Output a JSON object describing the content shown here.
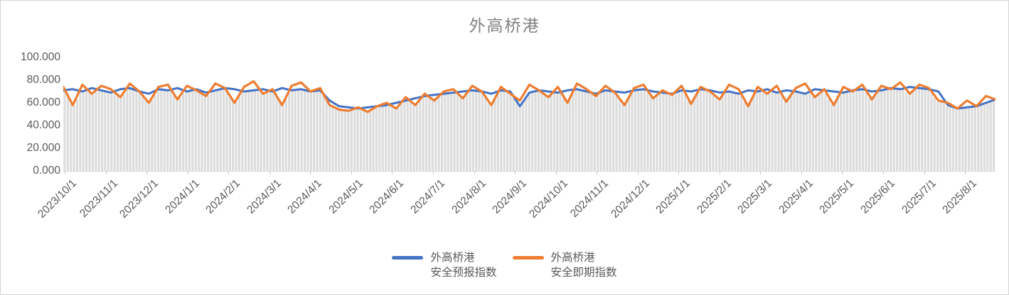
{
  "title": "外高桥港",
  "colors": {
    "forecast_line": "#4472C4",
    "spot_line": "#ED7D31",
    "background_bars": "#dcdcdc",
    "axis_text": "#595959",
    "title_text": "#808080",
    "axis_line": "#d9d9d9"
  },
  "legend": {
    "items": [
      {
        "line1": "外高桥港",
        "line2": "安全预报指数",
        "color": "#4472C4"
      },
      {
        "line1": "外高桥港",
        "line2": "安全即期指数",
        "color": "#ED7D31"
      }
    ]
  },
  "chart_data": {
    "type": "line",
    "title": "外高桥港",
    "xlabel": "",
    "ylabel": "",
    "ylim": [
      0,
      100
    ],
    "grid": false,
    "legend_position": "bottom-center",
    "x_start": "2023/10/1",
    "x_interval_days": 7,
    "x_tick_labels": [
      "2023/10/1",
      "2023/11/1",
      "2023/12/1",
      "2024/1/1",
      "2024/2/1",
      "2024/3/1",
      "2024/4/1",
      "2024/5/1",
      "2024/6/1",
      "2024/7/1",
      "2024/8/1",
      "2024/9/1",
      "2024/10/1",
      "2024/11/1",
      "2024/12/1",
      "2025/1/1",
      "2025/2/1",
      "2025/3/1",
      "2025/4/1",
      "2025/5/1",
      "2025/6/1",
      "2025/7/1",
      "2025/8/1"
    ],
    "y_tick_labels": [
      "0.000",
      "20.000",
      "40.000",
      "60.000",
      "80.000",
      "100.000"
    ],
    "y_tick_values": [
      0,
      20,
      40,
      60,
      80,
      100
    ],
    "series": [
      {
        "name": "外高桥港安全预报指数",
        "color": "#4472C4",
        "values": [
          71,
          72,
          70,
          73,
          71,
          69,
          72,
          73,
          70,
          68,
          72,
          71,
          73,
          70,
          72,
          69,
          71,
          73,
          72,
          70,
          71,
          72,
          70,
          73,
          71,
          72,
          70,
          71,
          62,
          57,
          56,
          55,
          56,
          57,
          58,
          60,
          62,
          64,
          66,
          67,
          68,
          69,
          70,
          71,
          70,
          68,
          71,
          70,
          57,
          69,
          71,
          70,
          69,
          71,
          72,
          70,
          68,
          71,
          70,
          69,
          71,
          72,
          70,
          69,
          68,
          71,
          70,
          72,
          71,
          69,
          70,
          68,
          71,
          70,
          72,
          69,
          71,
          70,
          68,
          72,
          71,
          70,
          69,
          71,
          72,
          70,
          71,
          73,
          72,
          74,
          73,
          72,
          70,
          58,
          55,
          56,
          57,
          60,
          63
        ]
      },
      {
        "name": "外高桥港安全即期指数",
        "color": "#ED7D31",
        "values": [
          74,
          58,
          76,
          68,
          75,
          72,
          65,
          77,
          70,
          60,
          74,
          76,
          63,
          75,
          71,
          66,
          77,
          73,
          60,
          74,
          79,
          68,
          72,
          58,
          75,
          78,
          70,
          73,
          58,
          54,
          53,
          56,
          52,
          57,
          60,
          55,
          65,
          58,
          68,
          62,
          70,
          72,
          64,
          75,
          70,
          58,
          74,
          68,
          62,
          76,
          71,
          65,
          74,
          60,
          77,
          72,
          66,
          75,
          69,
          58,
          73,
          76,
          64,
          71,
          67,
          75,
          59,
          74,
          70,
          63,
          76,
          72,
          57,
          74,
          68,
          75,
          61,
          73,
          77,
          65,
          72,
          58,
          74,
          70,
          76,
          63,
          75,
          72,
          78,
          68,
          76,
          73,
          62,
          60,
          55,
          62,
          57,
          66,
          63
        ]
      }
    ],
    "background_bars": {
      "color": "#dcdcdc",
      "note": "dense light-gray daily columns rising from 0 to just below the lower of the two line series"
    }
  }
}
